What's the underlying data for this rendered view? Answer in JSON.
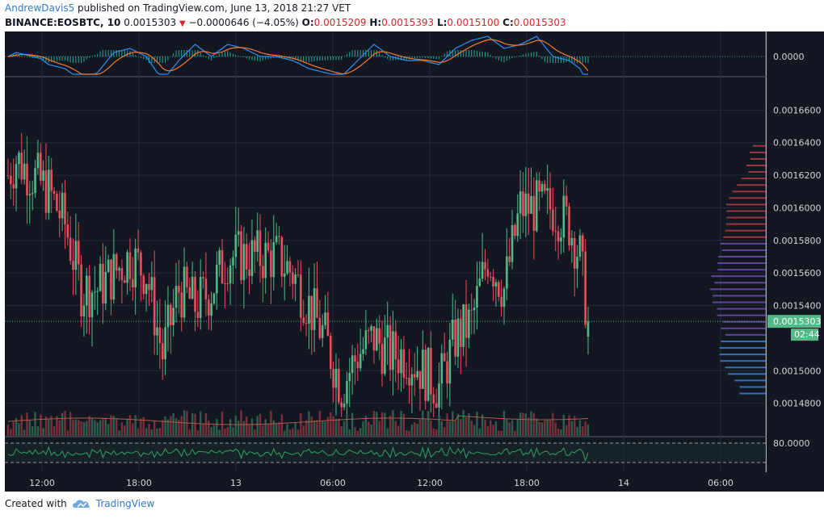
{
  "header": {
    "author": "AndrewDavis5",
    "published": "published on TradingView.com, June 13, 2018 21:27 VET",
    "symbol": "BINANCE:EOSBTC, 10",
    "last": "0.0015303",
    "change": "−0.0000646 (−4.05%)",
    "o_label": "O:",
    "o_value": "0.0015209",
    "h_label": "H:",
    "h_value": "0.0015393",
    "l_label": "L:",
    "l_value": "0.0015100",
    "c_label": "C:",
    "c_value": "0.0015303"
  },
  "footer": {
    "created_with": "Created with",
    "brand": "TradingView"
  },
  "colors": {
    "bg": "#131722",
    "grid": "#242a38",
    "up": "#53b987",
    "down": "#eb4d5c",
    "axis_text": "#d1d4dc",
    "price_tag": "#53b987",
    "macd": "#2e8ff5",
    "signal": "#f5792e",
    "hist": "#26a69a",
    "rsi": "#2e9f6a",
    "volume_ma": "#b05a48"
  },
  "chart_data": {
    "type": "candlestick",
    "interval_minutes": 10,
    "price_axis": {
      "ticks": [
        "0.0016600",
        "0.0016400",
        "0.0016200",
        "0.0016000",
        "0.0015800",
        "0.0015600",
        "0.0015400",
        "0.0015000",
        "0.0014800"
      ],
      "range": [
        0.00146,
        0.00168
      ]
    },
    "time_axis": {
      "ticks": [
        "12:00",
        "18:00",
        "13",
        "06:00",
        "12:00",
        "18:00",
        "14",
        "06:00"
      ]
    },
    "last_price_label": "0.0015303",
    "countdown_label": "02:44",
    "macd_panel": {
      "label": "0.0000"
    },
    "rsi_panel": {
      "label": "80.0000",
      "upper_band": 80,
      "lower_band": 20
    },
    "key_points": [
      {
        "time": "09:30",
        "price": 0.00162
      },
      {
        "time": "10:00",
        "price": 0.00163
      },
      {
        "time": "11:00",
        "price": 0.00162
      },
      {
        "time": "12:00",
        "price": 0.00161
      },
      {
        "time": "13:00",
        "price": 0.00159
      },
      {
        "time": "14:00",
        "price": 0.00155
      },
      {
        "time": "15:00",
        "price": 0.00155
      },
      {
        "time": "16:00",
        "price": 0.00156
      },
      {
        "time": "17:00",
        "price": 0.00157
      },
      {
        "time": "18:00",
        "price": 0.00156
      },
      {
        "time": "19:00",
        "price": 0.00151
      },
      {
        "time": "20:00",
        "price": 0.00155
      },
      {
        "time": "21:00",
        "price": 0.00154
      },
      {
        "time": "22:00",
        "price": 0.00155
      },
      {
        "time": "23:00",
        "price": 0.00157
      },
      {
        "time": "00:00",
        "price": 0.00157
      },
      {
        "time": "01:00",
        "price": 0.00157
      },
      {
        "time": "02:00",
        "price": 0.00157
      },
      {
        "time": "03:00",
        "price": 0.00156
      },
      {
        "time": "04:00",
        "price": 0.00154
      },
      {
        "time": "05:00",
        "price": 0.00152
      },
      {
        "time": "06:00",
        "price": 0.00149
      },
      {
        "time": "07:00",
        "price": 0.00151
      },
      {
        "time": "08:00",
        "price": 0.00152
      },
      {
        "time": "09:00",
        "price": 0.00151
      },
      {
        "time": "10:00",
        "price": 0.00151
      },
      {
        "time": "11:00",
        "price": 0.0015
      },
      {
        "time": "12:00",
        "price": 0.00149
      },
      {
        "time": "13:00",
        "price": 0.00152
      },
      {
        "time": "14:00",
        "price": 0.00153
      },
      {
        "time": "15:00",
        "price": 0.00157
      },
      {
        "time": "16:00",
        "price": 0.00155
      },
      {
        "time": "17:00",
        "price": 0.0016
      },
      {
        "time": "18:00",
        "price": 0.0016
      },
      {
        "time": "19:00",
        "price": 0.0016
      },
      {
        "time": "20:00",
        "price": 0.00159
      },
      {
        "time": "20:40",
        "price": 0.00157
      },
      {
        "time": "21:10",
        "price": 0.00153
      }
    ]
  }
}
